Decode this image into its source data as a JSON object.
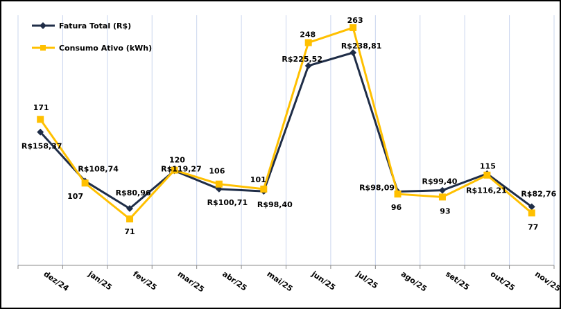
{
  "chart_data": {
    "type": "line",
    "title": "",
    "xlabel": "",
    "ylabel": "",
    "legend_position": "top-left",
    "grid": "vertical",
    "categories": [
      "dez/24",
      "jan/25",
      "fev/25",
      "mar/25",
      "abr/25",
      "mai/25",
      "jun/25",
      "jul/25",
      "ago/25",
      "set/25",
      "out/25",
      "nov/25"
    ],
    "series": [
      {
        "name": "Fatura Total (R$)",
        "color": "#1f2d47",
        "marker": "diamond",
        "ylim": [
          23.4,
          276.7
        ],
        "values": [
          158.37,
          108.74,
          80.96,
          119.27,
          100.71,
          98.4,
          225.52,
          238.81,
          98.09,
          99.4,
          116.21,
          82.76
        ],
        "labels": [
          "R$158,37",
          "R$108,74",
          "R$80,96",
          "R$119,27",
          "R$100,71",
          "R$98,40",
          "R$225,52",
          "R$238,81",
          "R$98,09",
          "R$99,40",
          "R$116,21",
          "R$82,76"
        ]
      },
      {
        "name": "Consumo Ativo (kWh)",
        "color": "#ffc000",
        "marker": "square",
        "ylim": [
          24.4,
          275.5
        ],
        "values": [
          171,
          107,
          71,
          120,
          106,
          101,
          248,
          263,
          96,
          93,
          115,
          77
        ],
        "labels": [
          "171",
          "107",
          "71",
          "120",
          "106",
          "101",
          "248",
          "263",
          "96",
          "93",
          "115",
          "77"
        ]
      }
    ]
  }
}
